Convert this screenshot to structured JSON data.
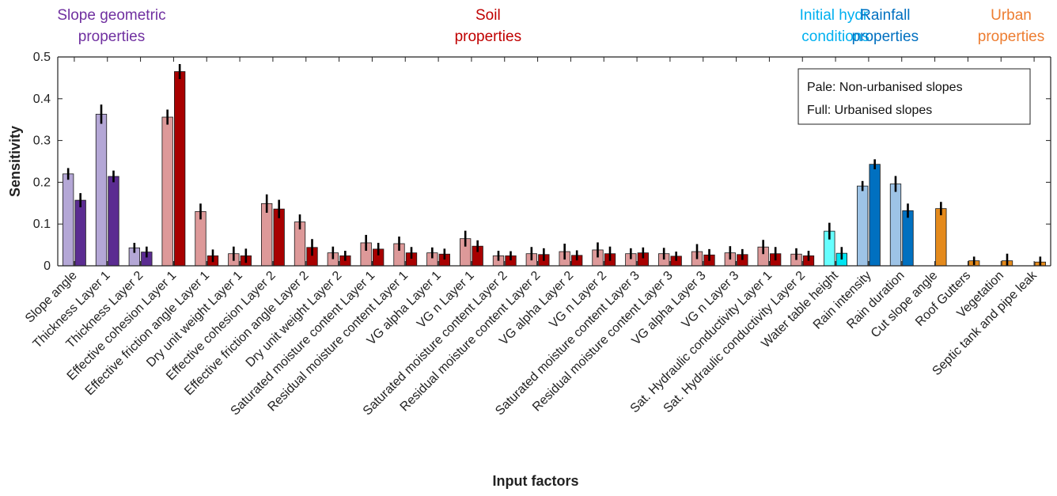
{
  "chart_data": {
    "type": "bar",
    "xlabel": "Input factors",
    "ylabel": "Sensitivity",
    "ylim": [
      0,
      0.5
    ],
    "yticks": [
      "0",
      "0.1",
      "0.2",
      "0.3",
      "0.4",
      "0.5"
    ],
    "grid": false,
    "legend": {
      "placement": "top-right",
      "lines": [
        "Pale: Non-urbanised slopes",
        "Full: Urbanised slopes"
      ]
    },
    "groups": [
      {
        "lines": [
          "Slope geometric",
          "properties"
        ],
        "color": "#7030a0"
      },
      {
        "lines": [
          "Soil",
          "properties"
        ],
        "color": "#c00000"
      },
      {
        "lines": [
          "Initial hydr.",
          "conditions"
        ],
        "color": "#00b0f0"
      },
      {
        "lines": [
          "Rainfall",
          "properties"
        ],
        "color": "#0070c0"
      },
      {
        "lines": [
          "Urban",
          "properties"
        ],
        "color": "#ed7d31"
      }
    ],
    "categories": [
      "Slope angle",
      "Thickness Layer 1",
      "Thickness Layer 2",
      "Effective cohesion Layer 1",
      "Effective friction angle Layer 1",
      "Dry unit weight Layer 1",
      "Effective cohesion Layer 2",
      "Effective friction angle Layer 2",
      "Dry unit weight Layer 2",
      "Saturated moisture content Layer 1",
      "Residual moisture content Layer 1",
      "VG alpha Layer 1",
      "VG n Layer 1",
      "Saturated moisture content Layer 2",
      "Residual moisture content Layer 2",
      "VG alpha Layer 2",
      "VG n Layer 2",
      "Saturated moisture content Layer 3",
      "Residual moisture content Layer 3",
      "VG alpha Layer 3",
      "VG n Layer 3",
      "Sat. Hydraulic conductivity Layer 1",
      "Sat. Hydraulic conductivity Layer 2",
      "Water table height",
      "Rain intensity",
      "Rain duration",
      "Cut slope angle",
      "Roof Gutters",
      "Vegetation",
      "Septic tank and pipe leak"
    ],
    "series": [
      {
        "name": "Non-urbanised slopes",
        "values": [
          0.22,
          0.363,
          0.043,
          0.356,
          0.13,
          0.029,
          0.149,
          0.105,
          0.031,
          0.055,
          0.053,
          0.031,
          0.065,
          0.024,
          0.029,
          0.034,
          0.038,
          0.029,
          0.029,
          0.034,
          0.031,
          0.045,
          0.028,
          0.083,
          0.191,
          0.196,
          null,
          null,
          null,
          null
        ],
        "errors": [
          0.014,
          0.023,
          0.012,
          0.018,
          0.019,
          0.017,
          0.022,
          0.018,
          0.015,
          0.019,
          0.017,
          0.013,
          0.019,
          0.012,
          0.016,
          0.019,
          0.018,
          0.013,
          0.014,
          0.018,
          0.016,
          0.017,
          0.014,
          0.02,
          0.012,
          0.019,
          null,
          null,
          null,
          null
        ]
      },
      {
        "name": "Urbanised slopes",
        "values": [
          0.157,
          0.214,
          0.033,
          0.465,
          0.024,
          0.024,
          0.136,
          0.044,
          0.024,
          0.04,
          0.031,
          0.028,
          0.047,
          0.024,
          0.027,
          0.025,
          0.029,
          0.031,
          0.023,
          0.026,
          0.027,
          0.029,
          0.024,
          0.03,
          0.243,
          0.132,
          0.137,
          0.012,
          0.012,
          0.009
        ],
        "errors": [
          0.017,
          0.014,
          0.013,
          0.018,
          0.015,
          0.017,
          0.022,
          0.02,
          0.012,
          0.015,
          0.014,
          0.013,
          0.014,
          0.011,
          0.015,
          0.012,
          0.017,
          0.013,
          0.011,
          0.014,
          0.013,
          0.016,
          0.012,
          0.015,
          0.012,
          0.017,
          0.016,
          0.01,
          0.017,
          0.013
        ]
      }
    ],
    "category_group": [
      0,
      0,
      0,
      1,
      1,
      1,
      1,
      1,
      1,
      1,
      1,
      1,
      1,
      1,
      1,
      1,
      1,
      1,
      1,
      1,
      1,
      1,
      1,
      2,
      3,
      3,
      4,
      4,
      4,
      4
    ],
    "colors": {
      "slope_pale": "#b4a7d6",
      "slope_full": "#5b2c91",
      "soil_pale": "#dd9999",
      "soil_full": "#a80000",
      "hydr_pale": "#66ffff",
      "hydr_full": "#00e5f2",
      "rain_pale": "#9dc3e6",
      "rain_full": "#0070c0",
      "urban_full": "#e48a1c",
      "errorbar": "#000000"
    }
  }
}
